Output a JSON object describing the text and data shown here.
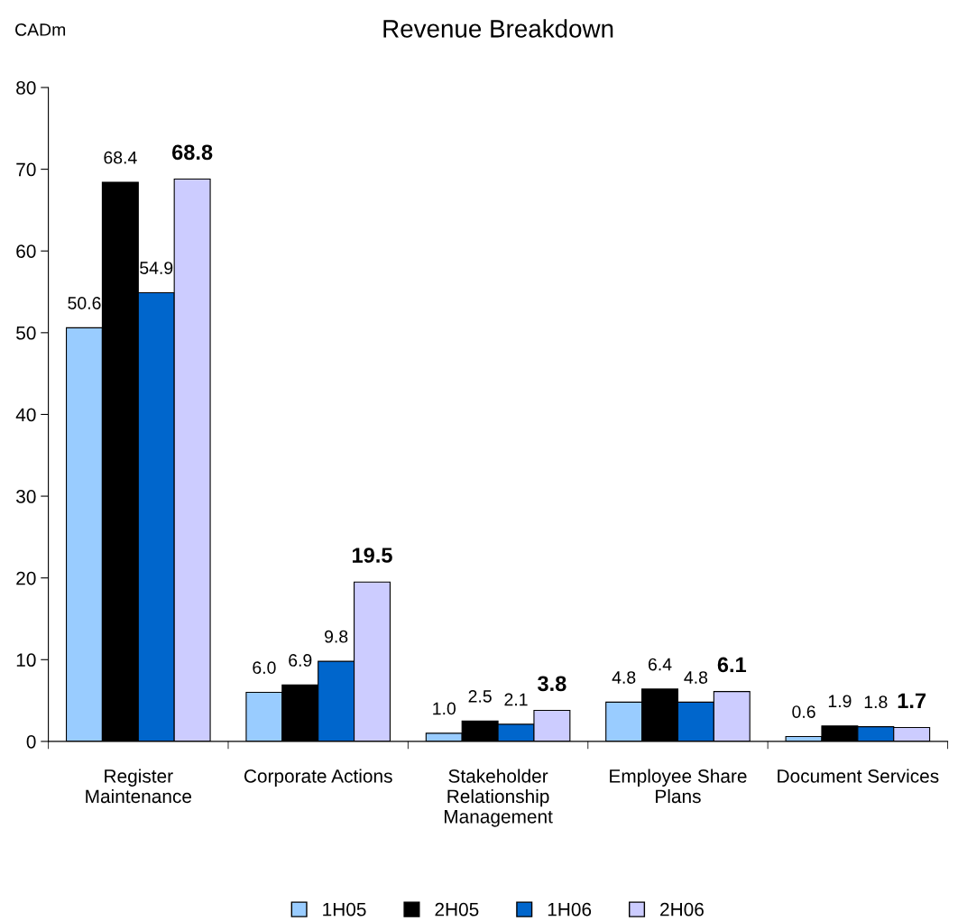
{
  "chart_data": {
    "type": "bar",
    "title": "Revenue Breakdown",
    "ylabel": "CADm",
    "categories": [
      "Register\nMaintenance",
      "Corporate Actions",
      "Stakeholder\nRelationship\nManagement",
      "Employee Share\nPlans",
      "Document Services"
    ],
    "series": [
      {
        "name": "1H05",
        "color": "#99ccff",
        "values": [
          50.6,
          6.0,
          1.0,
          4.8,
          0.6
        ],
        "value_labels": [
          "50.6",
          "6.0",
          "1.0",
          "4.8",
          "0.6"
        ]
      },
      {
        "name": "2H05",
        "color": "#000000",
        "values": [
          68.4,
          6.9,
          2.5,
          6.4,
          1.9
        ],
        "value_labels": [
          "68.4",
          "6.9",
          "2.5",
          "6.4",
          "1.9"
        ]
      },
      {
        "name": "1H06",
        "color": "#0066cc",
        "values": [
          54.9,
          9.8,
          2.1,
          4.8,
          1.8
        ],
        "value_labels": [
          "54.9",
          "9.8",
          "2.1",
          "4.8",
          "1.8"
        ]
      },
      {
        "name": "2H06",
        "color": "#ccccff",
        "values": [
          68.8,
          19.5,
          3.8,
          6.1,
          1.7
        ],
        "value_labels": [
          "68.8",
          "19.5",
          "3.8",
          "6.1",
          "1.7"
        ]
      }
    ],
    "ylim": [
      0,
      80
    ],
    "yticks": [
      0,
      10,
      20,
      30,
      40,
      50,
      60,
      70,
      80
    ],
    "grid": false,
    "legend": "bottom"
  }
}
